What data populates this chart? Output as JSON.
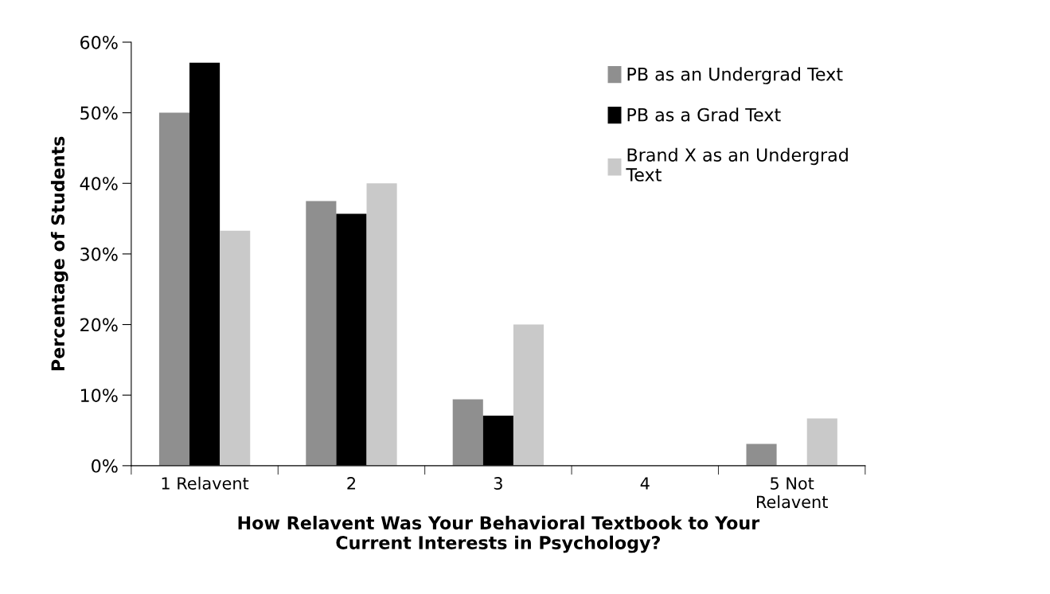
{
  "chart_data": {
    "type": "bar",
    "xlabel": "How Relavent Was Your Behavioral Textbook to Your\nCurrent Interests in Psychology?",
    "ylabel": "Percentage of Students",
    "categories": [
      "1 Relavent",
      "2",
      "3",
      "4",
      "5 Not\nRelavent"
    ],
    "series": [
      {
        "name": "PB as an Undergrad Text",
        "color": "#8f8f8f",
        "values": [
          50,
          37.5,
          9.4,
          0,
          3.1
        ]
      },
      {
        "name": "PB as a Grad Text",
        "color": "#000000",
        "values": [
          57.1,
          35.7,
          7.1,
          0,
          0
        ]
      },
      {
        "name": "Brand X as an Undergrad\nText",
        "color": "#c9c9c9",
        "values": [
          33.3,
          40,
          20,
          0,
          6.7
        ]
      }
    ],
    "ylim": [
      0,
      60
    ],
    "yticks": [
      {
        "value": 0,
        "label": "0%"
      },
      {
        "value": 10,
        "label": "10%"
      },
      {
        "value": 20,
        "label": "20%"
      },
      {
        "value": 30,
        "label": "30%"
      },
      {
        "value": 40,
        "label": "40%"
      },
      {
        "value": 50,
        "label": "50%"
      },
      {
        "value": 60,
        "label": "60%"
      }
    ],
    "grid": false,
    "legend": "top right"
  }
}
